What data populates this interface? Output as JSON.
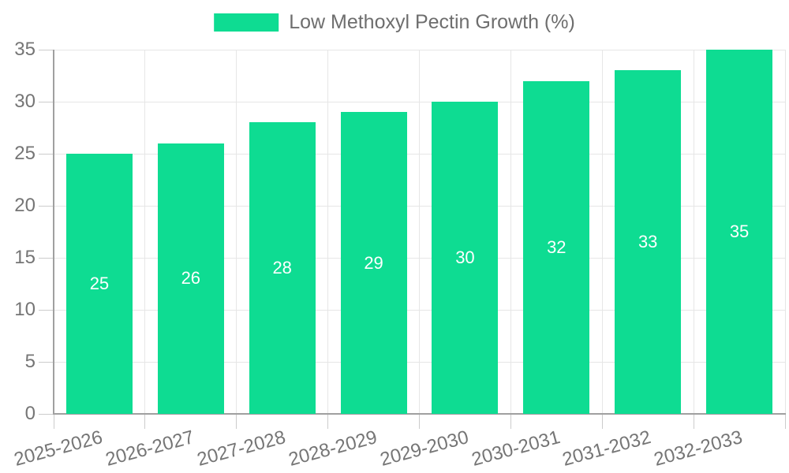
{
  "legend": {
    "label": "Low Methoxyl Pectin Growth (%)"
  },
  "chart_data": {
    "type": "bar",
    "title": "",
    "xlabel": "",
    "ylabel": "",
    "series_name": "Low Methoxyl Pectin Growth (%)",
    "categories": [
      "2025-2026",
      "2026-2027",
      "2027-2028",
      "2028-2029",
      "2029-2030",
      "2030-2031",
      "2031-2032",
      "2032-2033"
    ],
    "values": [
      25,
      26,
      28,
      29,
      30,
      32,
      33,
      35
    ],
    "value_labels": [
      "25",
      "26",
      "28",
      "29",
      "30",
      "32",
      "33",
      "35"
    ],
    "ylim": [
      0,
      35
    ],
    "ytick_step": 5,
    "yticks": [
      0,
      5,
      10,
      15,
      20,
      25,
      30,
      35
    ],
    "grid": true,
    "legend_position": "top-center",
    "x_label_rotation_deg": -15,
    "bar_color": "#0edc92",
    "value_label_color": "#ffffff",
    "axis_text_color": "#757575",
    "legend_text_color": "#6e6e6e",
    "gridline_color": "#e6e6e6",
    "axis_line_color": "#a0a0a0"
  }
}
